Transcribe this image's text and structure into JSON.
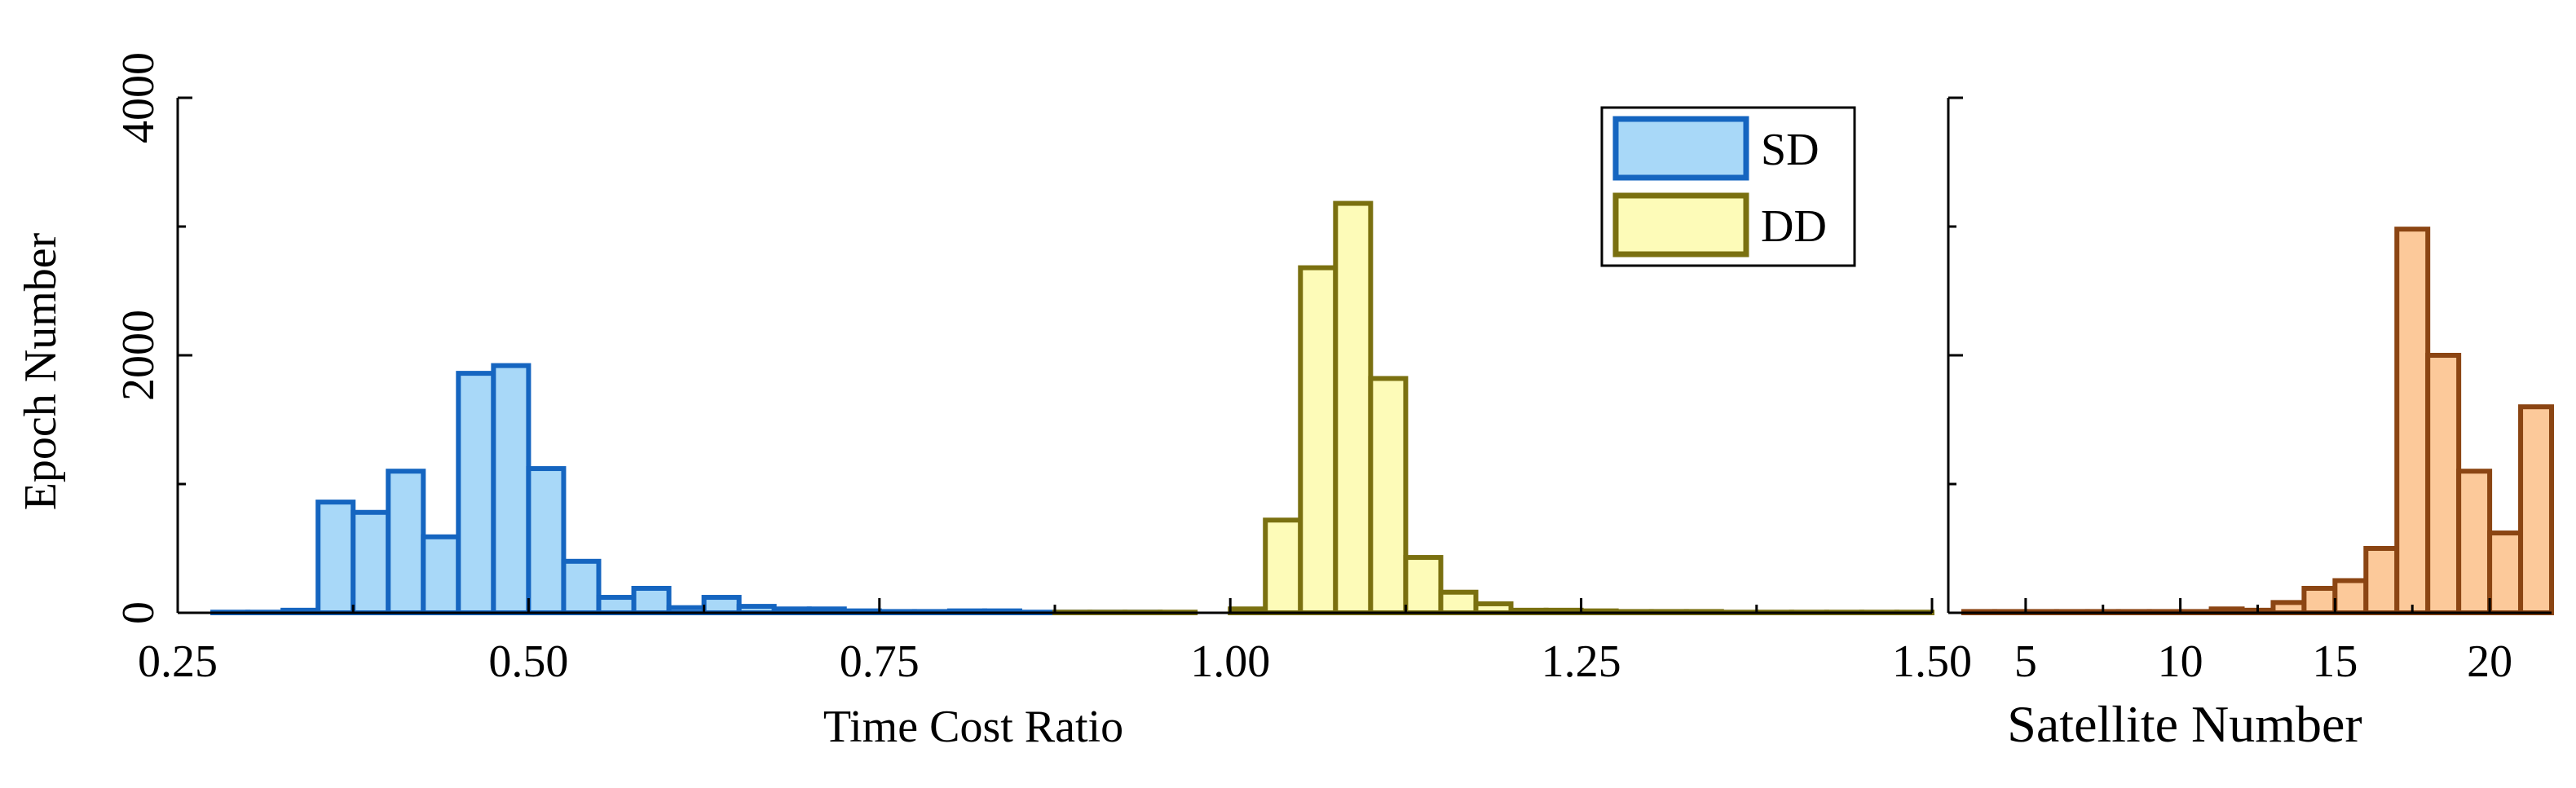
{
  "chart_data": [
    {
      "type": "bar",
      "subtype": "histogram",
      "xlabel": "Time Cost Ratio",
      "ylabel": "Epoch Number",
      "xlim": [
        0.25,
        1.5
      ],
      "ylim": [
        0,
        4000
      ],
      "xticks": [
        "0.25",
        "0.50",
        "0.75",
        "1.00",
        "1.25",
        "1.50"
      ],
      "xtick_values": [
        0.25,
        0.5,
        0.75,
        1.0,
        1.25,
        1.5
      ],
      "yticks": [
        "0",
        "2000",
        "4000"
      ],
      "ytick_values": [
        0,
        2000,
        4000
      ],
      "bin_width": 0.025,
      "legend": {
        "position": "top-right"
      },
      "series": [
        {
          "name": "SD",
          "fill": "#a8d8f8",
          "stroke": "#1565c0",
          "bins": [
            [
              0.25,
              0
            ],
            [
              0.275,
              5
            ],
            [
              0.3,
              5
            ],
            [
              0.325,
              20
            ],
            [
              0.35,
              860
            ],
            [
              0.375,
              780
            ],
            [
              0.4,
              1100
            ],
            [
              0.425,
              590
            ],
            [
              0.45,
              1860
            ],
            [
              0.475,
              1920
            ],
            [
              0.5,
              1120
            ],
            [
              0.525,
              400
            ],
            [
              0.55,
              120
            ],
            [
              0.575,
              190
            ],
            [
              0.6,
              40
            ],
            [
              0.625,
              120
            ],
            [
              0.65,
              50
            ],
            [
              0.675,
              30
            ],
            [
              0.7,
              30
            ],
            [
              0.725,
              15
            ],
            [
              0.75,
              10
            ],
            [
              0.775,
              10
            ],
            [
              0.8,
              15
            ],
            [
              0.825,
              15
            ],
            [
              0.85,
              5
            ],
            [
              0.875,
              5
            ],
            [
              0.9,
              5
            ],
            [
              0.925,
              5
            ]
          ]
        },
        {
          "name": "DD",
          "fill": "#fdfbb8",
          "stroke": "#7a7010",
          "bins": [
            [
              0.875,
              5
            ],
            [
              0.9,
              5
            ],
            [
              0.925,
              5
            ],
            [
              0.95,
              5
            ],
            [
              1.0,
              30
            ],
            [
              1.025,
              720
            ],
            [
              1.05,
              2680
            ],
            [
              1.075,
              3180
            ],
            [
              1.1,
              1820
            ],
            [
              1.125,
              430
            ],
            [
              1.15,
              160
            ],
            [
              1.175,
              70
            ],
            [
              1.2,
              20
            ],
            [
              1.225,
              20
            ],
            [
              1.25,
              15
            ],
            [
              1.275,
              10
            ],
            [
              1.3,
              10
            ],
            [
              1.325,
              10
            ],
            [
              1.35,
              5
            ],
            [
              1.375,
              5
            ],
            [
              1.4,
              5
            ],
            [
              1.425,
              5
            ],
            [
              1.45,
              5
            ],
            [
              1.475,
              5
            ]
          ]
        }
      ]
    },
    {
      "type": "bar",
      "subtype": "histogram",
      "xlabel": "Satellite Number",
      "ylabel": "",
      "xlim": [
        2.5,
        22
      ],
      "ylim": [
        0,
        4000
      ],
      "xticks": [
        "5",
        "10",
        "15",
        "20"
      ],
      "xtick_values": [
        5,
        10,
        15,
        20
      ],
      "bin_width": 1,
      "series": [
        {
          "name": "",
          "fill": "#fcc99a",
          "stroke": "#8b4513",
          "bins": [
            [
              3,
              10
            ],
            [
              4,
              10
            ],
            [
              5,
              10
            ],
            [
              6,
              10
            ],
            [
              7,
              10
            ],
            [
              8,
              10
            ],
            [
              9,
              10
            ],
            [
              10,
              10
            ],
            [
              11,
              30
            ],
            [
              12,
              20
            ],
            [
              13,
              80
            ],
            [
              14,
              190
            ],
            [
              15,
              250
            ],
            [
              16,
              500
            ],
            [
              17,
              2980
            ],
            [
              18,
              2000
            ],
            [
              19,
              1100
            ],
            [
              20,
              620
            ],
            [
              21,
              1600
            ]
          ]
        }
      ]
    }
  ]
}
